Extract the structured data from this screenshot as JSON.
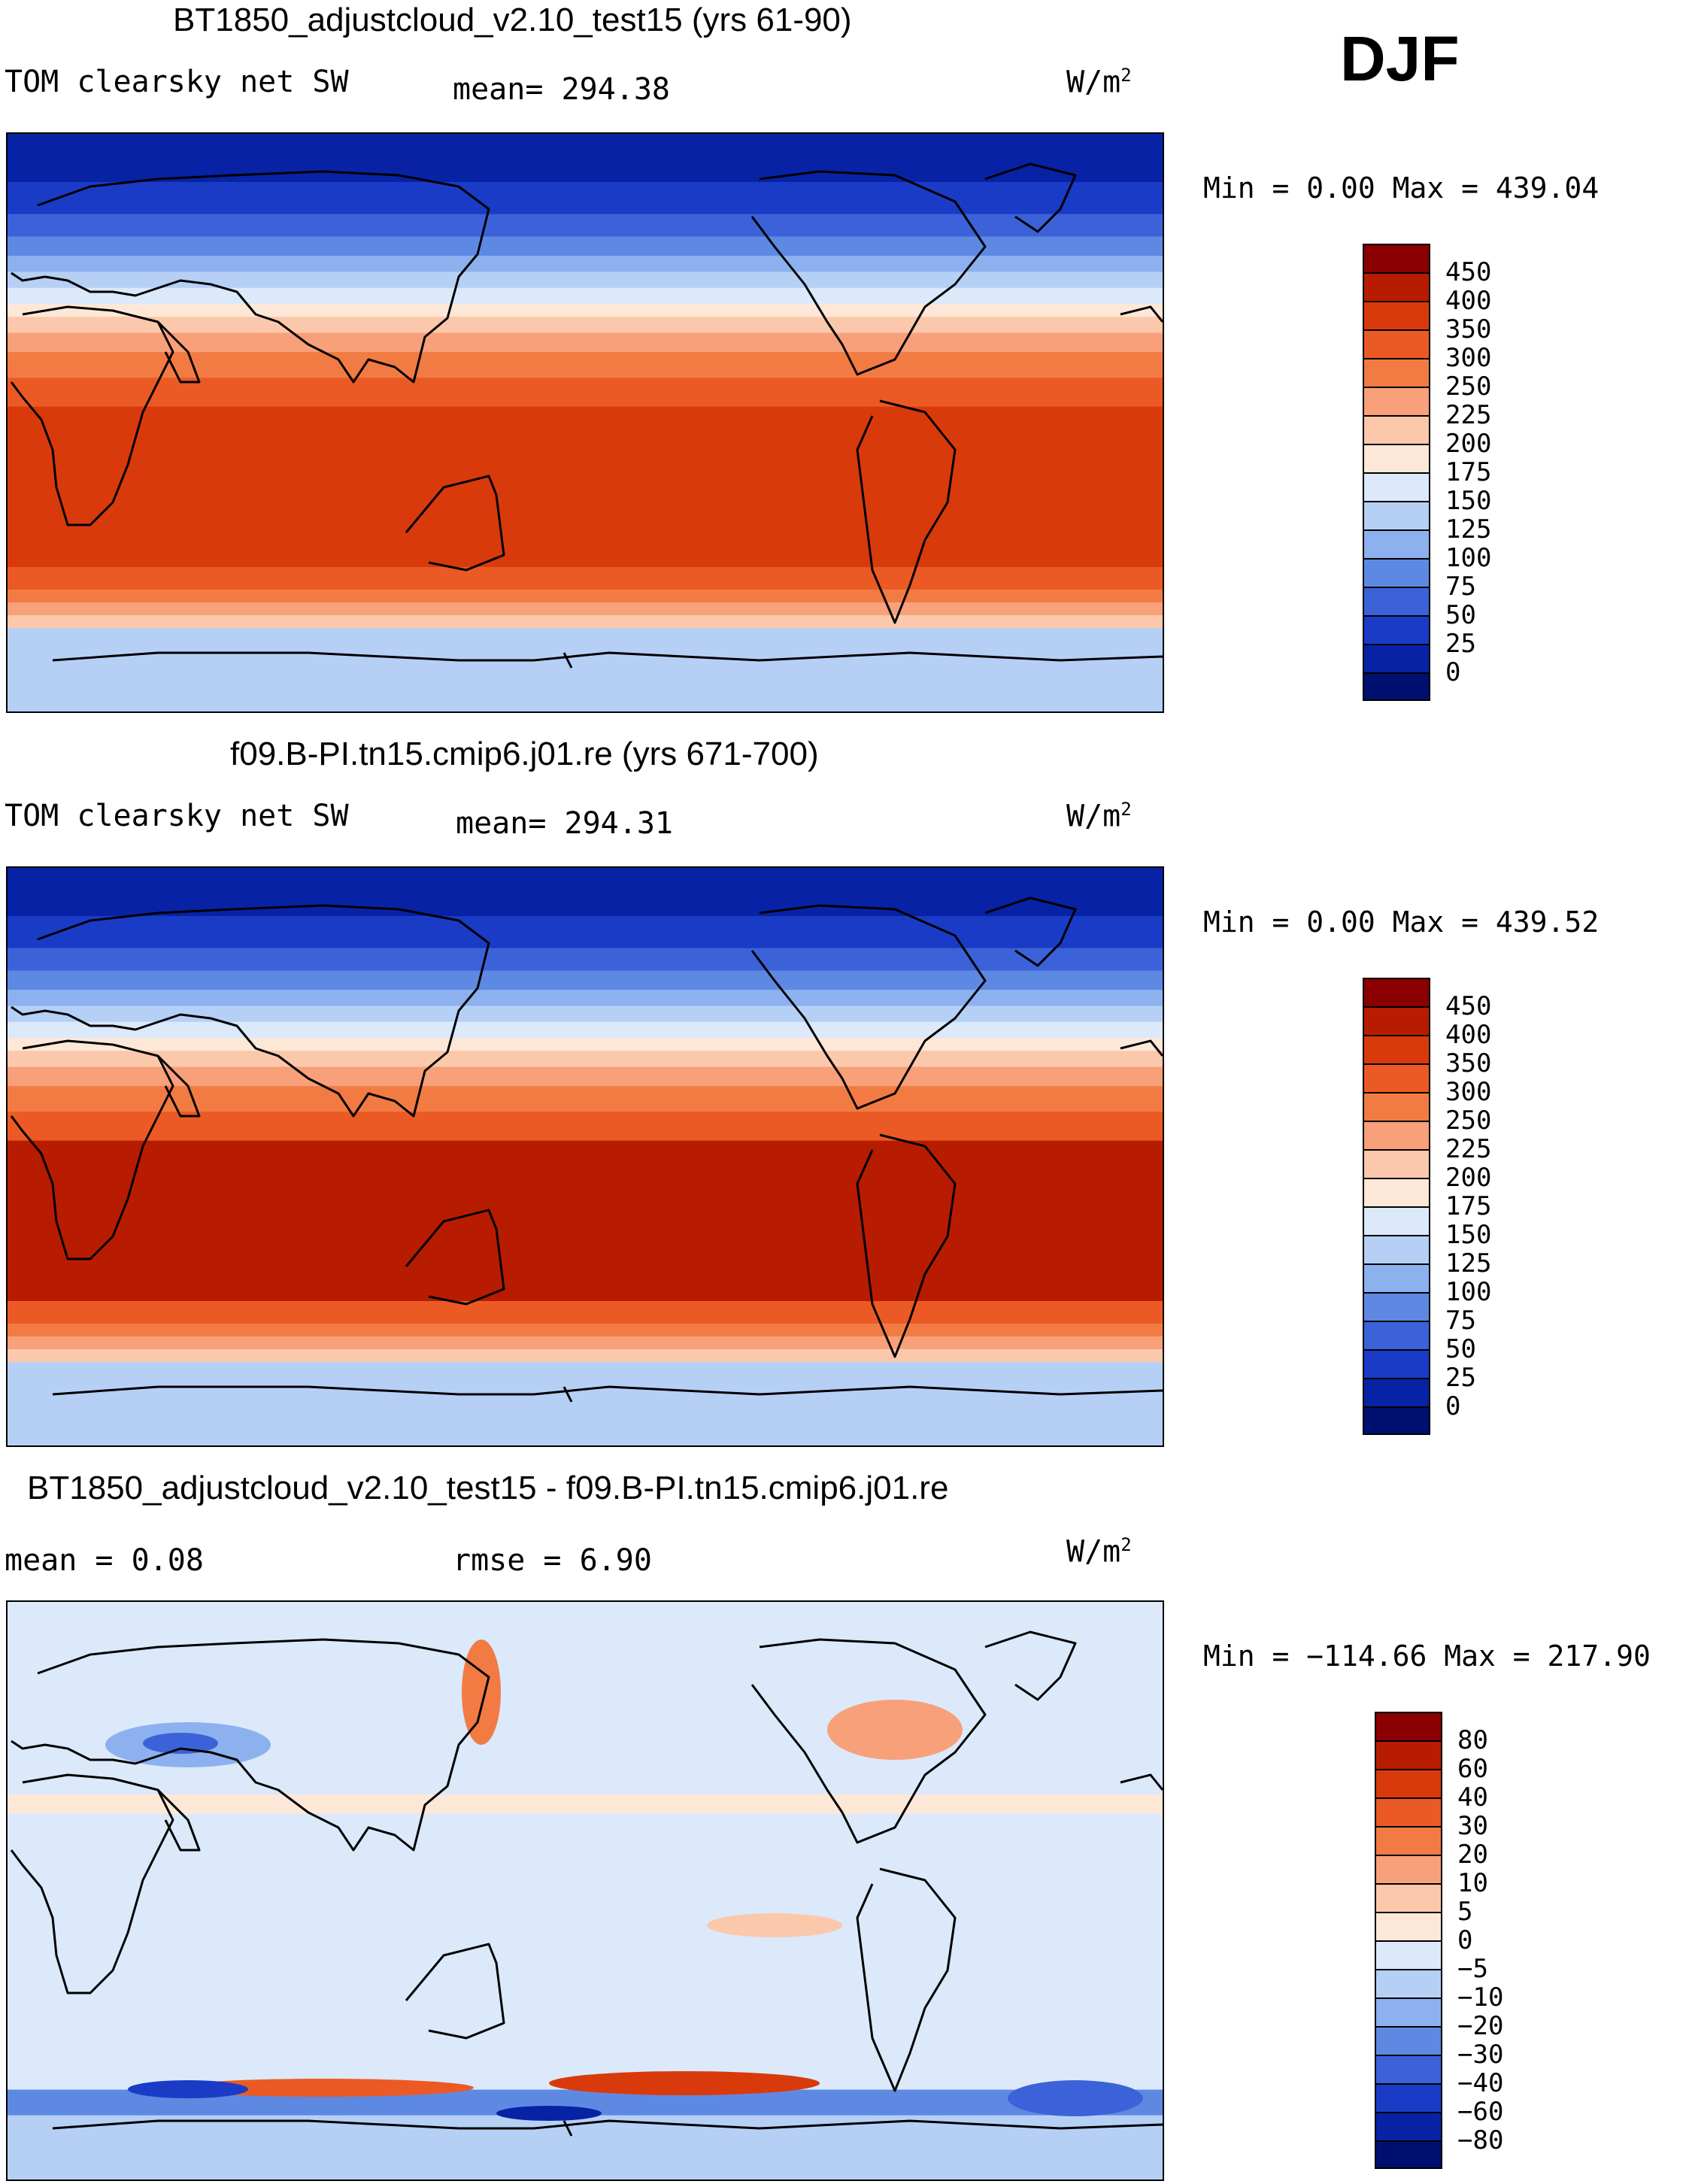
{
  "season": "DJF",
  "chart_data": [
    {
      "type": "heatmap",
      "title": "BT1850_adjustcloud_v2.10_test15 (yrs 61-90)",
      "variable": "TOM clearsky net SW",
      "stat_text": "mean=  294.38",
      "units_base": "W/m",
      "units_exp": "2",
      "minmax_text": "Min =    0.00 Max = 439.04",
      "colorbar_labels": [
        "450",
        "400",
        "350",
        "300",
        "250",
        "225",
        "200",
        "175",
        "150",
        "125",
        "100",
        "75",
        "50",
        "25",
        "0"
      ],
      "colorbar_colors": [
        "#8b0000",
        "#b81c00",
        "#d93a0c",
        "#eb5a24",
        "#f27b44",
        "#f7a07a",
        "#fcc8ac",
        "#fde8d8",
        "#dbe9fa",
        "#b6d0f5",
        "#8cb1ee",
        "#5e89e3",
        "#3b62d8",
        "#1a3bc6",
        "#0722a4",
        "#001070"
      ],
      "bands": [
        {
          "from_lat": 90,
          "to_lat": 75,
          "color_index": 14
        },
        {
          "from_lat": 75,
          "to_lat": 65,
          "color_index": 13
        },
        {
          "from_lat": 65,
          "to_lat": 58,
          "color_index": 12
        },
        {
          "from_lat": 58,
          "to_lat": 52,
          "color_index": 11
        },
        {
          "from_lat": 52,
          "to_lat": 47,
          "color_index": 10
        },
        {
          "from_lat": 47,
          "to_lat": 42,
          "color_index": 9
        },
        {
          "from_lat": 42,
          "to_lat": 37,
          "color_index": 8
        },
        {
          "from_lat": 37,
          "to_lat": 33,
          "color_index": 7
        },
        {
          "from_lat": 33,
          "to_lat": 28,
          "color_index": 6
        },
        {
          "from_lat": 28,
          "to_lat": 22,
          "color_index": 5
        },
        {
          "from_lat": 22,
          "to_lat": 14,
          "color_index": 4
        },
        {
          "from_lat": 14,
          "to_lat": 5,
          "color_index": 3
        },
        {
          "from_lat": 5,
          "to_lat": -45,
          "color_index": 2
        },
        {
          "from_lat": -45,
          "to_lat": -52,
          "color_index": 3
        },
        {
          "from_lat": -52,
          "to_lat": -56,
          "color_index": 4
        },
        {
          "from_lat": -56,
          "to_lat": -60,
          "color_index": 5
        },
        {
          "from_lat": -60,
          "to_lat": -64,
          "color_index": 6
        },
        {
          "from_lat": -64,
          "to_lat": -90,
          "color_index": 9
        }
      ]
    },
    {
      "type": "heatmap",
      "title": "f09.B-PI.tn15.cmip6.j01.re (yrs 671-700)",
      "variable": "TOM clearsky net SW",
      "stat_text": "mean=  294.31",
      "units_base": "W/m",
      "units_exp": "2",
      "minmax_text": "Min =    0.00 Max = 439.52",
      "colorbar_labels": [
        "450",
        "400",
        "350",
        "300",
        "250",
        "225",
        "200",
        "175",
        "150",
        "125",
        "100",
        "75",
        "50",
        "25",
        "0"
      ],
      "colorbar_colors": [
        "#8b0000",
        "#b81c00",
        "#d93a0c",
        "#eb5a24",
        "#f27b44",
        "#f7a07a",
        "#fcc8ac",
        "#fde8d8",
        "#dbe9fa",
        "#b6d0f5",
        "#8cb1ee",
        "#5e89e3",
        "#3b62d8",
        "#1a3bc6",
        "#0722a4",
        "#001070"
      ],
      "bands": [
        {
          "from_lat": 90,
          "to_lat": 75,
          "color_index": 14
        },
        {
          "from_lat": 75,
          "to_lat": 65,
          "color_index": 13
        },
        {
          "from_lat": 65,
          "to_lat": 58,
          "color_index": 12
        },
        {
          "from_lat": 58,
          "to_lat": 52,
          "color_index": 11
        },
        {
          "from_lat": 52,
          "to_lat": 47,
          "color_index": 10
        },
        {
          "from_lat": 47,
          "to_lat": 42,
          "color_index": 9
        },
        {
          "from_lat": 42,
          "to_lat": 37,
          "color_index": 8
        },
        {
          "from_lat": 37,
          "to_lat": 33,
          "color_index": 7
        },
        {
          "from_lat": 33,
          "to_lat": 28,
          "color_index": 6
        },
        {
          "from_lat": 28,
          "to_lat": 22,
          "color_index": 5
        },
        {
          "from_lat": 22,
          "to_lat": 14,
          "color_index": 4
        },
        {
          "from_lat": 14,
          "to_lat": 5,
          "color_index": 3
        },
        {
          "from_lat": 5,
          "to_lat": -45,
          "color_index": 1
        },
        {
          "from_lat": -45,
          "to_lat": -52,
          "color_index": 3
        },
        {
          "from_lat": -52,
          "to_lat": -56,
          "color_index": 4
        },
        {
          "from_lat": -56,
          "to_lat": -60,
          "color_index": 5
        },
        {
          "from_lat": -60,
          "to_lat": -64,
          "color_index": 6
        },
        {
          "from_lat": -64,
          "to_lat": -90,
          "color_index": 9
        }
      ]
    },
    {
      "type": "heatmap",
      "title": "BT1850_adjustcloud_v2.10_test15 - f09.B-PI.tn15.cmip6.j01.re",
      "variable": "mean =    0.08",
      "stat_text": "rmse =    6.90",
      "units_base": "W/m",
      "units_exp": "2",
      "minmax_text": "Min = −114.66 Max = 217.90",
      "colorbar_labels": [
        "80",
        "60",
        "40",
        "30",
        "20",
        "10",
        "5",
        "0",
        "−5",
        "−10",
        "−20",
        "−30",
        "−40",
        "−60",
        "−80"
      ],
      "colorbar_colors": [
        "#8b0000",
        "#b81c00",
        "#d93a0c",
        "#eb5a24",
        "#f27b44",
        "#f7a07a",
        "#fcc8ac",
        "#fde8d8",
        "#dbe9fa",
        "#b6d0f5",
        "#8cb1ee",
        "#5e89e3",
        "#3b62d8",
        "#1a3bc6",
        "#0722a4",
        "#001070"
      ],
      "bands": [
        {
          "from_lat": 90,
          "to_lat": 30,
          "color_index": 8
        },
        {
          "from_lat": 30,
          "to_lat": 24,
          "color_index": 7
        },
        {
          "from_lat": 24,
          "to_lat": 16,
          "color_index": 8
        },
        {
          "from_lat": 16,
          "to_lat": -62,
          "color_index": 8
        },
        {
          "from_lat": -62,
          "to_lat": -70,
          "color_index": 11
        },
        {
          "from_lat": -70,
          "to_lat": -90,
          "color_index": 9
        }
      ]
    }
  ]
}
